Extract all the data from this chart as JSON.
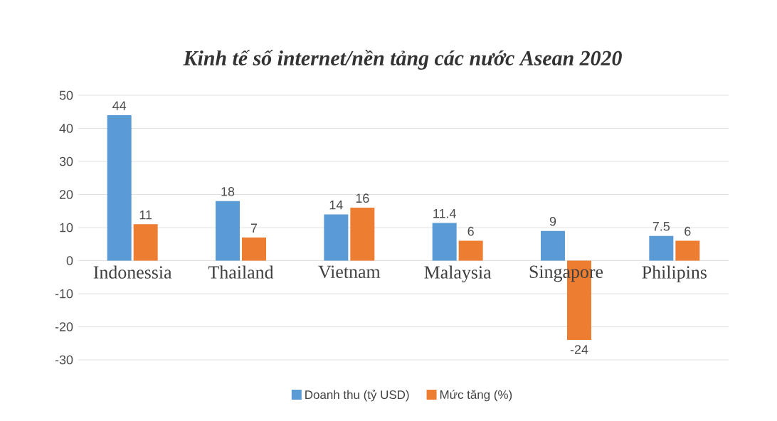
{
  "chart_data": {
    "type": "bar",
    "title": "Kinh tế số internet/nền tảng các nước Asean 2020",
    "categories": [
      "Indonessia",
      "Thailand",
      "Vietnam",
      "Malaysia",
      "Singapore",
      "Philipins"
    ],
    "series": [
      {
        "name": "Doanh thu (tỷ USD)",
        "color": "#5b9bd5",
        "values": [
          44,
          18,
          14,
          11.4,
          9,
          7.5
        ]
      },
      {
        "name": "Mức tăng (%)",
        "color": "#ed7d31",
        "values": [
          11,
          7,
          16,
          6,
          -24,
          6
        ]
      }
    ],
    "ylim": [
      -30,
      50
    ],
    "yticks": [
      -30,
      -20,
      -10,
      0,
      10,
      20,
      30,
      40,
      50
    ],
    "grid": "y",
    "legend": "bottom",
    "data_labels": true
  }
}
